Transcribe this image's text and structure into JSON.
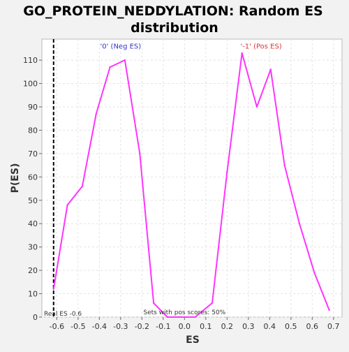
{
  "chart_data": {
    "type": "line",
    "title": "GO_PROTEIN_NEDDYLATION: Random ES distribution",
    "xlabel": "ES",
    "ylabel": "P(ES)",
    "xlim": [
      -0.67,
      0.74
    ],
    "ylim": [
      0,
      119
    ],
    "grid": true,
    "x_ticks": [
      -0.6,
      -0.5,
      -0.4,
      -0.3,
      -0.2,
      -0.1,
      0.0,
      0.1,
      0.2,
      0.3,
      0.4,
      0.5,
      0.6,
      0.7
    ],
    "x_tick_labels": [
      "-0.6",
      "-0.5",
      "-0.4",
      "-0.3",
      "-0.2",
      "-0.1",
      "0.0",
      "0.1",
      "0.2",
      "0.3",
      "0.4",
      "0.5",
      "0.6",
      "0.7"
    ],
    "y_ticks": [
      0,
      10,
      20,
      30,
      40,
      50,
      60,
      70,
      80,
      90,
      100,
      110
    ],
    "y_tick_labels": [
      "0",
      "10",
      "20",
      "30",
      "40",
      "50",
      "60",
      "70",
      "80",
      "90",
      "100",
      "110"
    ],
    "series": [
      {
        "color": "#ff33ff",
        "x": [
          -0.615,
          -0.55,
          -0.48,
          -0.415,
          -0.35,
          -0.28,
          -0.21,
          -0.145,
          -0.08,
          -0.015,
          0.05,
          0.13,
          0.2,
          0.27,
          0.34,
          0.405,
          0.47,
          0.54,
          0.61,
          0.68
        ],
        "y": [
          12,
          48,
          56,
          87,
          107,
          110,
          70,
          6,
          0,
          0,
          0,
          6,
          62,
          113,
          90,
          106,
          65,
          40,
          19,
          3
        ]
      }
    ],
    "vline": {
      "x": -0.615,
      "color": "#000000",
      "style": "dashed"
    },
    "annotations": [
      {
        "id": "neg",
        "text": "'0' (Neg ES)",
        "x": -0.3,
        "y": 115,
        "color": "#3333cc"
      },
      {
        "id": "pos",
        "text": "'-1' (Pos ES)",
        "x": 0.36,
        "y": 115,
        "color": "#dd3333"
      },
      {
        "id": "real-es",
        "text": "Real ES -0.6",
        "x": -0.66,
        "y": 0,
        "color": "#333333"
      },
      {
        "id": "sets-pos",
        "text": "Sets with pos scores: 50%",
        "x": 0.0,
        "y": 0,
        "color": "#333333"
      }
    ]
  }
}
